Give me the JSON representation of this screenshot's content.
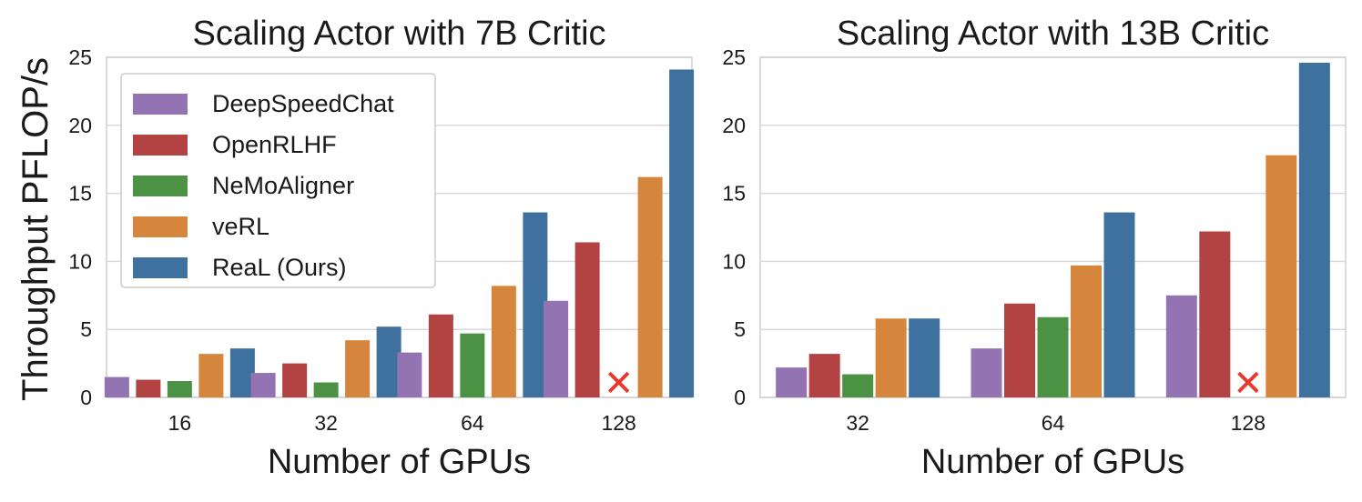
{
  "figure": {
    "ylabel": "Throughput PFLOP/s"
  },
  "chart_data": [
    {
      "type": "bar",
      "title": "Scaling Actor with 7B Critic",
      "xlabel": "Number of GPUs",
      "ylabel": "Throughput PFLOP/s",
      "categories": [
        "16",
        "32",
        "64",
        "128"
      ],
      "ylim": [
        0,
        25
      ],
      "yticks": [
        "0",
        "5",
        "10",
        "15",
        "20",
        "25"
      ],
      "grid": true,
      "legend": "top-left",
      "series": [
        {
          "name": "DeepSpeedChat",
          "color": "#9473b3",
          "values": [
            1.5,
            1.8,
            3.3,
            7.1
          ]
        },
        {
          "name": "OpenRLHF",
          "color": "#b34343",
          "values": [
            1.3,
            2.5,
            6.1,
            11.4
          ]
        },
        {
          "name": "NeMoAligner",
          "color": "#4c9244",
          "values": [
            1.2,
            1.1,
            4.7,
            null
          ]
        },
        {
          "name": "veRL",
          "color": "#d6853d",
          "values": [
            3.2,
            4.2,
            8.2,
            16.2
          ]
        },
        {
          "name": "ReaL (Ours)",
          "color": "#3f719e",
          "values": [
            3.6,
            5.2,
            13.6,
            24.1
          ]
        }
      ],
      "failure_markers": [
        {
          "category": "128",
          "series": "NeMoAligner",
          "symbol": "✕",
          "color": "#e8382c"
        }
      ]
    },
    {
      "type": "bar",
      "title": "Scaling Actor with 13B Critic",
      "xlabel": "Number of GPUs",
      "ylabel": "",
      "categories": [
        "32",
        "64",
        "128"
      ],
      "ylim": [
        0,
        25
      ],
      "yticks": [
        "0",
        "5",
        "10",
        "15",
        "20",
        "25"
      ],
      "grid": true,
      "legend": "none",
      "series": [
        {
          "name": "DeepSpeedChat",
          "color": "#9473b3",
          "values": [
            2.2,
            3.6,
            7.5
          ]
        },
        {
          "name": "OpenRLHF",
          "color": "#b34343",
          "values": [
            3.2,
            6.9,
            12.2
          ]
        },
        {
          "name": "NeMoAligner",
          "color": "#4c9244",
          "values": [
            1.7,
            5.9,
            null
          ]
        },
        {
          "name": "veRL",
          "color": "#d6853d",
          "values": [
            5.8,
            9.7,
            17.8
          ]
        },
        {
          "name": "ReaL (Ours)",
          "color": "#3f719e",
          "values": [
            5.8,
            13.6,
            24.6
          ]
        }
      ],
      "failure_markers": [
        {
          "category": "128",
          "series": "NeMoAligner",
          "symbol": "✕",
          "color": "#e8382c"
        }
      ]
    }
  ]
}
